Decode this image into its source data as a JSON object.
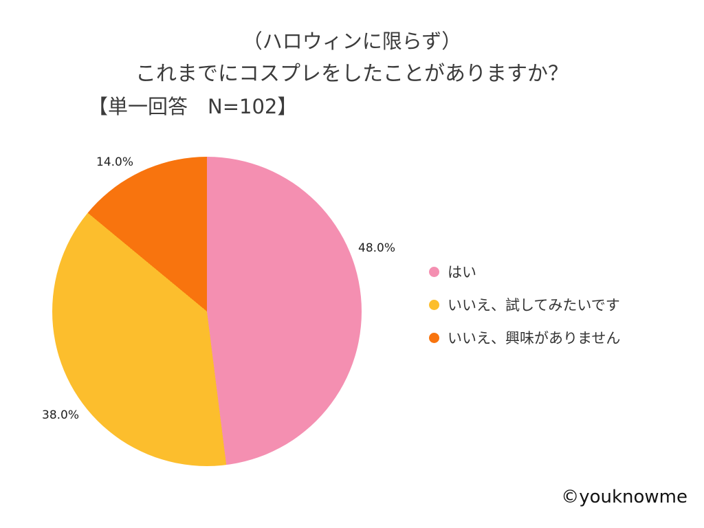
{
  "title": {
    "line1": "（ハロウィンに限らず）",
    "line2": "これまでにコスプレをしたことがありますか？",
    "line3": "【単一回答　N=102】"
  },
  "chart_data": {
    "type": "pie",
    "title": "（ハロウィンに限らず）これまでにコスプレをしたことがありますか？",
    "subtitle": "【単一回答　N=102】",
    "n": 102,
    "categories": [
      "はい",
      "いいえ、試してみたいです",
      "いいえ、興味がありません"
    ],
    "values": [
      48.0,
      38.0,
      14.0
    ],
    "labels": [
      "48.0%",
      "38.0%",
      "14.0%"
    ],
    "colors": [
      "#f48fb1",
      "#fcbe2d",
      "#f8740e"
    ],
    "start_angle_deg": 0,
    "direction": "clockwise",
    "legend_position": "right"
  },
  "legend": {
    "items": [
      {
        "label": "はい",
        "color": "#f48fb1"
      },
      {
        "label": "いいえ、試してみたいです",
        "color": "#fcbe2d"
      },
      {
        "label": "いいえ、興味がありません",
        "color": "#f8740e"
      }
    ]
  },
  "footer": {
    "credit": "©youknowme"
  }
}
